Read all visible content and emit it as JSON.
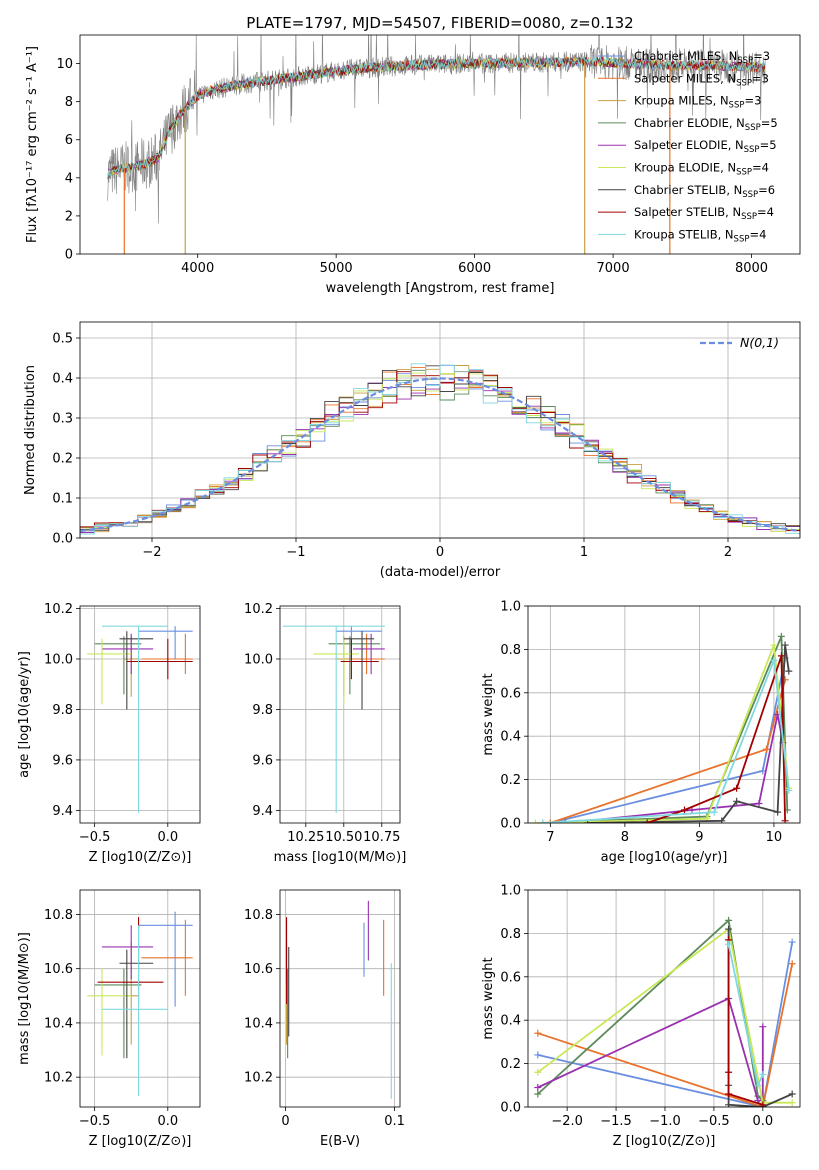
{
  "colors": {
    "chabrier_miles": "#6a8fe0",
    "salpeter_miles": "#e8722a",
    "kroupa_miles": "#c8a040",
    "chabrier_elodie": "#5a8a5a",
    "salpeter_elodie": "#9a30b0",
    "kroupa_elodie": "#c8e858",
    "chabrier_stelib": "#444444",
    "salpeter_stelib": "#a00000",
    "kroupa_stelib": "#80d8e0",
    "data_spectrum": "#808080"
  },
  "chart_data": [
    {
      "type": "line",
      "id": "spectrum",
      "title": "PLATE=1797, MJD=54507, FIBERID=0080, z=0.132",
      "xlabel": "wavelength [Angstrom, rest frame]",
      "ylabel": "Flux [fλ10⁻¹⁷ erg cm⁻² s⁻¹ A⁻¹]",
      "xlim": [
        3150,
        8350
      ],
      "ylim": [
        0,
        11.5
      ],
      "xticks": [
        4000,
        5000,
        6000,
        7000,
        8000
      ],
      "yticks": [
        0,
        2,
        4,
        6,
        8,
        10
      ],
      "grid": false,
      "legend_position": "right",
      "legend": [
        {
          "label": "Chabrier MILES, N_SSP=3",
          "color_key": "chabrier_miles"
        },
        {
          "label": "Salpeter MILES, N_SSP=3",
          "color_key": "salpeter_miles"
        },
        {
          "label": "Kroupa MILES, N_SSP=3",
          "color_key": "kroupa_miles"
        },
        {
          "label": "Chabrier ELODIE, N_SSP=5",
          "color_key": "chabrier_elodie"
        },
        {
          "label": "Salpeter ELODIE, N_SSP=5",
          "color_key": "salpeter_elodie"
        },
        {
          "label": "Kroupa ELODIE, N_SSP=4",
          "color_key": "kroupa_elodie"
        },
        {
          "label": "Chabrier STELIB, N_SSP=6",
          "color_key": "chabrier_stelib"
        },
        {
          "label": "Salpeter STELIB, N_SSP=4",
          "color_key": "salpeter_stelib"
        },
        {
          "label": "Kroupa STELIB, N_SSP=4",
          "color_key": "kroupa_stelib"
        }
      ],
      "continuum": {
        "x": [
          3350,
          3450,
          3550,
          3650,
          3720,
          3800,
          3900,
          4000,
          4100,
          4300,
          4500,
          4700,
          4900,
          5100,
          5300,
          5500,
          5700,
          5900,
          6100,
          6300,
          6500,
          6700,
          6900,
          7100,
          7300,
          7500,
          7700,
          7900,
          8100
        ],
        "y": [
          4.2,
          4.5,
          4.6,
          4.8,
          5.1,
          6.5,
          7.6,
          8.3,
          8.6,
          8.9,
          9.1,
          9.3,
          9.5,
          9.7,
          9.8,
          9.9,
          9.95,
          10.0,
          10.0,
          10.05,
          10.05,
          10.1,
          10.1,
          10.0,
          9.95,
          9.9,
          9.9,
          9.85,
          9.8
        ]
      },
      "dips": [
        {
          "x": 3470,
          "color_key": "salpeter_miles"
        },
        {
          "x": 3910,
          "color_key": "kroupa_miles"
        },
        {
          "x": 6795,
          "color_key": "kroupa_miles"
        },
        {
          "x": 7410,
          "color_key": "salpeter_miles"
        }
      ]
    },
    {
      "type": "step",
      "id": "residuals",
      "xlabel": "(data-model)/error",
      "ylabel": "Normed distribution",
      "xlim": [
        -2.5,
        2.5
      ],
      "ylim": [
        0,
        0.54
      ],
      "xticks": [
        -2,
        -1,
        0,
        1,
        2
      ],
      "yticks": [
        0.0,
        0.1,
        0.2,
        0.3,
        0.4,
        0.5
      ],
      "grid": true,
      "legend_position": "top-right",
      "reference_curve": {
        "label": "N(0,1)",
        "mean": 0,
        "sigma": 1
      }
    },
    {
      "type": "errorbar",
      "id": "age-vs-Z",
      "xlabel": "Z [log10(Z/Z⊙)]",
      "ylabel": "age [log10(age/yr)]",
      "xlim": [
        -0.6,
        0.22
      ],
      "ylim": [
        9.35,
        10.21
      ],
      "xticks": [
        -0.5,
        0.0
      ],
      "xtick_labels": [
        "−0.5",
        "0.0"
      ],
      "yticks": [
        9.4,
        9.6,
        9.8,
        10.0,
        10.2
      ],
      "grid": true,
      "points": [
        {
          "color_key": "chabrier_miles",
          "x": 0.05,
          "xerr": [
            0.25,
            0.12
          ],
          "y": 10.11,
          "yerr": [
            0.11,
            0.02
          ]
        },
        {
          "color_key": "salpeter_miles",
          "x": 0.12,
          "xerr": [
            0.3,
            0.05
          ],
          "y": 10.0,
          "yerr": [
            0.06,
            0.1
          ]
        },
        {
          "color_key": "kroupa_miles",
          "x": -0.25,
          "xerr": [
            0.05,
            0.05
          ],
          "y": 10.0,
          "yerr": [
            0.15,
            0.09
          ]
        },
        {
          "color_key": "chabrier_elodie",
          "x": -0.3,
          "xerr": [
            0.2,
            0.12
          ],
          "y": 10.06,
          "yerr": [
            0.2,
            0.03
          ]
        },
        {
          "color_key": "salpeter_elodie",
          "x": -0.25,
          "xerr": [
            0.2,
            0.15
          ],
          "y": 10.04,
          "yerr": [
            0.1,
            0.06
          ]
        },
        {
          "color_key": "kroupa_elodie",
          "x": -0.45,
          "xerr": [
            0.1,
            0.2
          ],
          "y": 10.02,
          "yerr": [
            0.2,
            0.06
          ]
        },
        {
          "color_key": "chabrier_stelib",
          "x": -0.28,
          "xerr": [
            0.05,
            0.18
          ],
          "y": 10.08,
          "yerr": [
            0.28,
            0.03
          ]
        },
        {
          "color_key": "salpeter_stelib",
          "x": 0.0,
          "xerr": [
            0.28,
            0.17
          ],
          "y": 9.99,
          "yerr": [
            0.07,
            0.09
          ]
        },
        {
          "color_key": "kroupa_stelib",
          "x": -0.2,
          "xerr": [
            0.25,
            0.2
          ],
          "y": 10.13,
          "yerr": [
            0.74,
            0.0
          ]
        }
      ]
    },
    {
      "type": "errorbar",
      "id": "age-vs-mass",
      "xlabel": "mass [log10(M/M⊙)]",
      "ylabel": "",
      "xlim": [
        10.08,
        10.87
      ],
      "ylim": [
        9.35,
        10.21
      ],
      "xticks": [
        10.25,
        10.5,
        10.75
      ],
      "xtick_labels": [
        "10.25",
        "10.50",
        "10.75"
      ],
      "yticks": [
        9.4,
        9.6,
        9.8,
        10.0,
        10.2
      ],
      "grid": true,
      "points": [
        {
          "color_key": "chabrier_miles",
          "x": 10.55,
          "xerr": [
            0.1,
            0.2
          ],
          "y": 10.11,
          "yerr": [
            0.11,
            0.02
          ]
        },
        {
          "color_key": "salpeter_miles",
          "x": 10.65,
          "xerr": [
            0.15,
            0.12
          ],
          "y": 10.0,
          "yerr": [
            0.06,
            0.1
          ]
        },
        {
          "color_key": "kroupa_miles",
          "x": 10.5,
          "xerr": [
            0.05,
            0.05
          ],
          "y": 10.0,
          "yerr": [
            0.15,
            0.09
          ]
        },
        {
          "color_key": "chabrier_elodie",
          "x": 10.54,
          "xerr": [
            0.14,
            0.2
          ],
          "y": 10.06,
          "yerr": [
            0.2,
            0.03
          ]
        },
        {
          "color_key": "salpeter_elodie",
          "x": 10.68,
          "xerr": [
            0.12,
            0.09
          ],
          "y": 10.04,
          "yerr": [
            0.1,
            0.06
          ]
        },
        {
          "color_key": "kroupa_elodie",
          "x": 10.5,
          "xerr": [
            0.2,
            0.1
          ],
          "y": 10.02,
          "yerr": [
            0.2,
            0.06
          ]
        },
        {
          "color_key": "chabrier_stelib",
          "x": 10.62,
          "xerr": [
            0.12,
            0.08
          ],
          "y": 10.08,
          "yerr": [
            0.28,
            0.03
          ]
        },
        {
          "color_key": "salpeter_stelib",
          "x": 10.55,
          "xerr": [
            0.07,
            0.18
          ],
          "y": 9.99,
          "yerr": [
            0.07,
            0.09
          ]
        },
        {
          "color_key": "kroupa_stelib",
          "x": 10.45,
          "xerr": [
            0.35,
            0.32
          ],
          "y": 10.13,
          "yerr": [
            0.74,
            0.0
          ]
        }
      ]
    },
    {
      "type": "line",
      "id": "weight-vs-age",
      "xlabel": "age [log10(age/yr)]",
      "ylabel": "mass weight",
      "xlim": [
        6.7,
        10.35
      ],
      "ylim": [
        0,
        1.0
      ],
      "xticks": [
        7,
        8,
        9,
        10
      ],
      "yticks": [
        0.0,
        0.2,
        0.4,
        0.6,
        0.8,
        1.0
      ],
      "grid": true,
      "series": [
        {
          "color_key": "chabrier_miles",
          "x": [
            7.0,
            9.85,
            10.15
          ],
          "y": [
            0.0,
            0.24,
            0.76
          ]
        },
        {
          "color_key": "salpeter_miles",
          "x": [
            7.0,
            9.9,
            10.15
          ],
          "y": [
            0.0,
            0.34,
            0.66
          ]
        },
        {
          "color_key": "chabrier_elodie",
          "x": [
            6.9,
            9.1,
            10.1,
            10.18
          ],
          "y": [
            0.0,
            0.03,
            0.86,
            0.06
          ]
        },
        {
          "color_key": "salpeter_elodie",
          "x": [
            7.2,
            8.9,
            9.8,
            10.05,
            10.12
          ],
          "y": [
            0.0,
            0.06,
            0.09,
            0.5,
            0.37
          ]
        },
        {
          "color_key": "kroupa_elodie",
          "x": [
            6.8,
            9.1,
            10.0,
            10.2
          ],
          "y": [
            0.0,
            0.02,
            0.82,
            0.16
          ]
        },
        {
          "color_key": "chabrier_stelib",
          "x": [
            7.5,
            9.3,
            9.5,
            10.05,
            10.15,
            10.2
          ],
          "y": [
            0.0,
            0.01,
            0.1,
            0.05,
            0.82,
            0.7
          ]
        },
        {
          "color_key": "salpeter_stelib",
          "x": [
            8.3,
            8.8,
            9.5,
            10.1,
            10.15
          ],
          "y": [
            0.0,
            0.06,
            0.16,
            0.77,
            0.01
          ]
        },
        {
          "color_key": "kroupa_stelib",
          "x": [
            6.9,
            9.2,
            10.0,
            10.2
          ],
          "y": [
            0.0,
            0.05,
            0.75,
            0.15
          ]
        }
      ]
    },
    {
      "type": "errorbar",
      "id": "mass-vs-Z",
      "xlabel": "Z [log10(Z/Z⊙)]",
      "ylabel": "mass [log10(M/M⊙)]",
      "xlim": [
        -0.6,
        0.22
      ],
      "ylim": [
        10.09,
        10.89
      ],
      "xticks": [
        -0.5,
        0.0
      ],
      "xtick_labels": [
        "−0.5",
        "0.0"
      ],
      "yticks": [
        10.2,
        10.4,
        10.6,
        10.8
      ],
      "grid": true,
      "points": [
        {
          "color_key": "chabrier_miles",
          "x": 0.05,
          "xerr": [
            0.25,
            0.12
          ],
          "y": 10.76,
          "yerr": [
            0.3,
            0.05
          ]
        },
        {
          "color_key": "salpeter_miles",
          "x": 0.12,
          "xerr": [
            0.3,
            0.05
          ],
          "y": 10.64,
          "yerr": [
            0.14,
            0.14
          ]
        },
        {
          "color_key": "kroupa_miles",
          "x": -0.25,
          "xerr": [
            0.05,
            0.05
          ],
          "y": 10.5,
          "yerr": [
            0.18,
            0.2
          ]
        },
        {
          "color_key": "chabrier_elodie",
          "x": -0.3,
          "xerr": [
            0.2,
            0.12
          ],
          "y": 10.54,
          "yerr": [
            0.27,
            0.06
          ]
        },
        {
          "color_key": "salpeter_elodie",
          "x": -0.25,
          "xerr": [
            0.2,
            0.15
          ],
          "y": 10.68,
          "yerr": [
            0.12,
            0.08
          ]
        },
        {
          "color_key": "kroupa_elodie",
          "x": -0.45,
          "xerr": [
            0.1,
            0.2
          ],
          "y": 10.5,
          "yerr": [
            0.22,
            0.1
          ]
        },
        {
          "color_key": "chabrier_stelib",
          "x": -0.28,
          "xerr": [
            0.05,
            0.18
          ],
          "y": 10.62,
          "yerr": [
            0.35,
            0.05
          ]
        },
        {
          "color_key": "salpeter_stelib",
          "x": -0.2,
          "xerr": [
            0.28,
            0.17
          ],
          "y": 10.55,
          "yerr": [
            0.08,
            0.24
          ]
        },
        {
          "color_key": "kroupa_stelib",
          "x": -0.2,
          "xerr": [
            0.25,
            0.2
          ],
          "y": 10.45,
          "yerr": [
            0.32,
            0.31
          ]
        }
      ]
    },
    {
      "type": "errorbar",
      "id": "mass-vs-EBV",
      "xlabel": "E(B-V)",
      "ylabel": "",
      "xlim": [
        -0.005,
        0.105
      ],
      "ylim": [
        10.09,
        10.89
      ],
      "xticks": [
        0,
        0.1
      ],
      "xtick_labels": [
        "0",
        "0.1"
      ],
      "yticks": [
        10.2,
        10.4,
        10.6,
        10.8
      ],
      "grid": true,
      "points": [
        {
          "color_key": "chabrier_miles",
          "x": 0.072,
          "xerr": [
            0.0,
            0.0
          ],
          "y": 10.65,
          "yerr": [
            0.08,
            0.12
          ]
        },
        {
          "color_key": "salpeter_miles",
          "x": 0.09,
          "xerr": [
            0.0,
            0.0
          ],
          "y": 10.64,
          "yerr": [
            0.14,
            0.14
          ]
        },
        {
          "color_key": "kroupa_miles",
          "x": 0.001,
          "xerr": [
            0.0,
            0.0
          ],
          "y": 10.5,
          "yerr": [
            0.18,
            0.2
          ]
        },
        {
          "color_key": "chabrier_elodie",
          "x": 0.002,
          "xerr": [
            0.0,
            0.0
          ],
          "y": 10.54,
          "yerr": [
            0.27,
            0.06
          ]
        },
        {
          "color_key": "salpeter_elodie",
          "x": 0.076,
          "xerr": [
            0.0,
            0.0
          ],
          "y": 10.75,
          "yerr": [
            0.12,
            0.1
          ]
        },
        {
          "color_key": "kroupa_elodie",
          "x": 0.0,
          "xerr": [
            0.0,
            0.0
          ],
          "y": 10.45,
          "yerr": [
            0.18,
            0.1
          ]
        },
        {
          "color_key": "chabrier_stelib",
          "x": 0.003,
          "xerr": [
            0.0,
            0.0
          ],
          "y": 10.55,
          "yerr": [
            0.2,
            0.13
          ]
        },
        {
          "color_key": "salpeter_stelib",
          "x": 0.001,
          "xerr": [
            0.0,
            0.0
          ],
          "y": 10.62,
          "yerr": [
            0.15,
            0.17
          ]
        },
        {
          "color_key": "kroupa_stelib",
          "x": 0.097,
          "xerr": [
            0.0,
            0.0
          ],
          "y": 10.4,
          "yerr": [
            0.28,
            0.22
          ]
        }
      ]
    },
    {
      "type": "line",
      "id": "weight-vs-Z",
      "xlabel": "Z [log10(Z/Z⊙)]",
      "ylabel": "mass weight",
      "xlim": [
        -2.4,
        0.38
      ],
      "ylim": [
        0,
        1.0
      ],
      "xticks": [
        -2.0,
        -1.5,
        -1.0,
        -0.5,
        0.0
      ],
      "xtick_labels": [
        "−2.0",
        "−1.5",
        "−1.0",
        "−0.5",
        "0.0"
      ],
      "yticks": [
        0.0,
        0.2,
        0.4,
        0.6,
        0.8,
        1.0
      ],
      "grid": true,
      "series": [
        {
          "color_key": "chabrier_miles",
          "x": [
            -2.3,
            0.0,
            0.3
          ],
          "y": [
            0.24,
            0.0,
            0.76
          ]
        },
        {
          "color_key": "salpeter_miles",
          "x": [
            -2.3,
            0.0,
            0.3
          ],
          "y": [
            0.34,
            0.0,
            0.66
          ]
        },
        {
          "color_key": "chabrier_elodie",
          "x": [
            -2.3,
            -0.35,
            -0.05,
            0.0
          ],
          "y": [
            0.06,
            0.86,
            0.05,
            0.03
          ]
        },
        {
          "color_key": "salpeter_elodie",
          "x": [
            -2.3,
            -0.35,
            -0.05,
            0.0,
            0.0
          ],
          "y": [
            0.09,
            0.5,
            0.03,
            0.0,
            0.37
          ]
        },
        {
          "color_key": "kroupa_elodie",
          "x": [
            -2.3,
            -0.35,
            0.0,
            0.3
          ],
          "y": [
            0.16,
            0.82,
            0.02,
            0.02
          ]
        },
        {
          "color_key": "chabrier_stelib",
          "x": [
            -0.35,
            -0.35,
            -0.35,
            0.0,
            0.3
          ],
          "y": [
            0.82,
            0.1,
            0.01,
            0.0,
            0.06
          ]
        },
        {
          "color_key": "salpeter_stelib",
          "x": [
            -0.35,
            -0.35,
            -0.35,
            0.0
          ],
          "y": [
            0.77,
            0.16,
            0.06,
            0.01
          ]
        },
        {
          "color_key": "kroupa_stelib",
          "x": [
            -0.35,
            -0.05,
            0.0
          ],
          "y": [
            0.75,
            0.1,
            0.15
          ]
        }
      ]
    }
  ]
}
